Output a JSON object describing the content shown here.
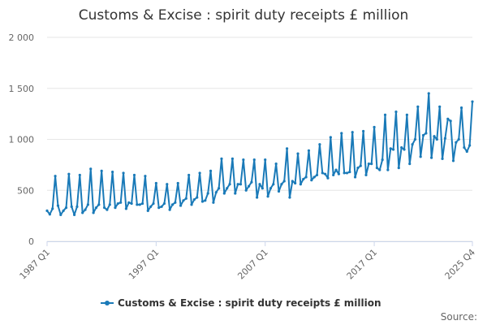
{
  "chart_data": {
    "type": "line",
    "title": "Customs & Excise : spirit duty receipts £ million",
    "xlabel": "",
    "ylabel": "",
    "ylim": [
      0,
      2000
    ],
    "yticks": [
      0,
      500,
      1000,
      1500,
      2000
    ],
    "ytick_labels": [
      "0",
      "500",
      "1 000",
      "1 500",
      "2 000"
    ],
    "x_tick_labels": [
      "1987 Q1",
      "1997 Q1",
      "2007 Q1",
      "2017 Q1",
      "2025 Q4"
    ],
    "legend": "bottom-center",
    "grid": true,
    "series": [
      {
        "name": "Customs & Excise : spirit duty receipts £ million",
        "color": "#1a7ab8",
        "values": [
          300,
          265,
          320,
          640,
          350,
          260,
          300,
          330,
          660,
          340,
          260,
          340,
          650,
          280,
          310,
          360,
          710,
          280,
          330,
          360,
          690,
          330,
          310,
          360,
          680,
          330,
          370,
          380,
          670,
          320,
          380,
          370,
          650,
          360,
          360,
          370,
          640,
          300,
          340,
          370,
          570,
          330,
          340,
          370,
          560,
          310,
          360,
          380,
          570,
          350,
          400,
          420,
          650,
          360,
          410,
          430,
          670,
          390,
          400,
          470,
          690,
          380,
          480,
          520,
          810,
          470,
          520,
          560,
          810,
          470,
          560,
          560,
          800,
          500,
          540,
          580,
          800,
          430,
          560,
          520,
          800,
          440,
          520,
          560,
          760,
          490,
          560,
          590,
          910,
          430,
          590,
          570,
          860,
          560,
          610,
          630,
          890,
          600,
          630,
          650,
          950,
          670,
          660,
          620,
          1020,
          650,
          700,
          660,
          1060,
          670,
          670,
          680,
          1070,
          630,
          720,
          740,
          1080,
          650,
          760,
          760,
          1120,
          720,
          700,
          800,
          1240,
          700,
          910,
          900,
          1270,
          720,
          920,
          900,
          1240,
          760,
          950,
          1000,
          1320,
          830,
          1040,
          1060,
          1450,
          820,
          1030,
          1000,
          1320,
          810,
          1010,
          1200,
          1180,
          790,
          970,
          1000,
          1310,
          920,
          880,
          940,
          1370
        ]
      }
    ],
    "legend_label": "Customs & Excise : spirit duty receipts £ million",
    "source_label": "Source:"
  }
}
